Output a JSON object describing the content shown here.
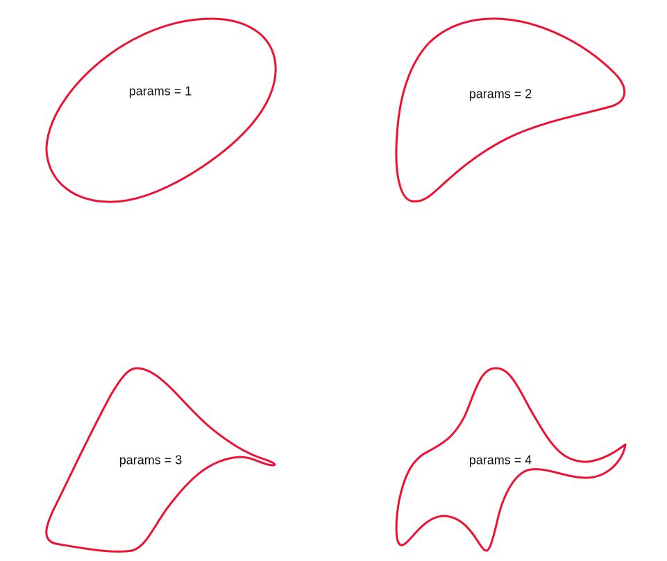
{
  "style": {
    "curve_color": "#ee1133",
    "background": "#ffffff",
    "label_color": "#111111"
  },
  "panels": [
    {
      "label": "params = 1"
    },
    {
      "label": "params = 2"
    },
    {
      "label": "params = 3"
    },
    {
      "label": "params = 4"
    }
  ]
}
